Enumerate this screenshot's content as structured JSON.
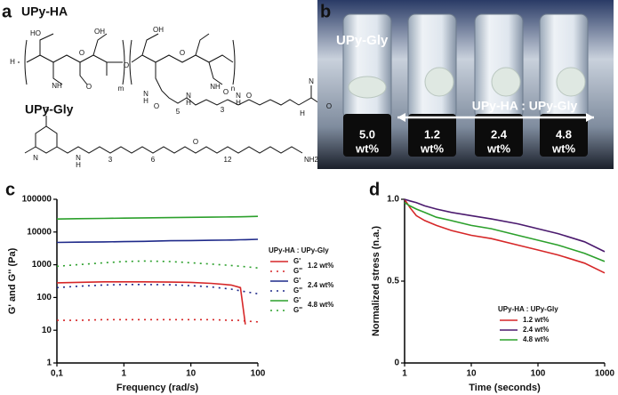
{
  "panels": {
    "a": {
      "label": "a",
      "molecules": [
        "UPy-HA",
        "UPy-Gly"
      ],
      "atoms": [
        "H",
        "O",
        "HO",
        "OH",
        "NH",
        "O",
        "m",
        "O",
        "OH",
        "O",
        "NH",
        "O",
        "n",
        "5",
        "N",
        "H",
        "O",
        "N",
        "H",
        "3",
        "N",
        "H",
        "O",
        "N",
        "O",
        "H",
        "N",
        "N",
        "H",
        "3",
        "6",
        "12",
        "NH2",
        "O",
        "O"
      ]
    },
    "b": {
      "label": "b",
      "sample_label": "UPy-Gly",
      "ratio_label": "UPy-HA : UPy-Gly",
      "vials": [
        {
          "amount": "5.0",
          "unit": "wt%"
        },
        {
          "amount": "1.2",
          "unit": "wt%"
        },
        {
          "amount": "2.4",
          "unit": "wt%"
        },
        {
          "amount": "4.8",
          "unit": "wt%"
        }
      ]
    }
  },
  "chart_data": [
    {
      "type": "line",
      "panel_label": "c",
      "x_label": "Frequency (rad/s)",
      "y_label": "G' and G'' (Pa)",
      "xscale": "log",
      "yscale": "log",
      "xlim": [
        0.1,
        100
      ],
      "xticks": [
        {
          "value": 0.1,
          "label": "0,1"
        },
        1,
        10,
        100
      ],
      "ylim": [
        1,
        100000
      ],
      "yticks": [
        1,
        10,
        100,
        1000,
        10000,
        100000
      ],
      "legend_title": "UPy-HA : UPy-Gly",
      "x": [
        0.1,
        0.2,
        0.5,
        1,
        2,
        5,
        10,
        20,
        40,
        55,
        65,
        100
      ],
      "series": [
        {
          "name": "G'",
          "group": "1.2 wt%",
          "color": "#d62728",
          "style": "solid",
          "values": [
            280,
            290,
            300,
            300,
            300,
            295,
            290,
            270,
            240,
            200,
            15,
            null
          ]
        },
        {
          "name": "G''",
          "color": "#d62728",
          "style": "dotted",
          "values": [
            20,
            20,
            21,
            21,
            21,
            21,
            21,
            21,
            20,
            20,
            19,
            18
          ]
        },
        {
          "name": "G'",
          "group": "2.4 wt%",
          "color": "#1f2a8a",
          "style": "solid",
          "values": [
            4800,
            4900,
            5000,
            5100,
            5200,
            5400,
            5500,
            5600,
            5700,
            5800,
            5850,
            6000
          ]
        },
        {
          "name": "G''",
          "color": "#1f2a8a",
          "style": "dotted",
          "values": [
            200,
            220,
            240,
            250,
            250,
            245,
            230,
            210,
            180,
            160,
            150,
            130
          ]
        },
        {
          "name": "G'",
          "group": "4.8 wt%",
          "color": "#2ca02c",
          "style": "solid",
          "values": [
            25000,
            25500,
            26000,
            26500,
            27000,
            27500,
            28000,
            28500,
            29000,
            29200,
            29400,
            30000
          ]
        },
        {
          "name": "G''",
          "color": "#2ca02c",
          "style": "dotted",
          "values": [
            900,
            1000,
            1150,
            1250,
            1300,
            1250,
            1150,
            1050,
            950,
            900,
            870,
            800
          ]
        }
      ]
    },
    {
      "type": "line",
      "panel_label": "d",
      "x_label": "Time (seconds)",
      "y_label": "Normalized stress (n.a.)",
      "xscale": "log",
      "yscale": "linear",
      "xlim": [
        1,
        1000
      ],
      "xticks": [
        1,
        10,
        100,
        1000
      ],
      "ylim": [
        0,
        1
      ],
      "yticks": [
        0,
        0.5,
        {
          "value": 1,
          "label": "1.0"
        }
      ],
      "legend_title": "UPy-HA : UPy-Gly",
      "x": [
        1,
        1.2,
        1.5,
        2,
        3,
        5,
        10,
        20,
        50,
        100,
        200,
        500,
        1000
      ],
      "series": [
        {
          "name": "1.2 wt%",
          "color": "#d62728",
          "style": "solid",
          "values": [
            1.0,
            0.95,
            0.9,
            0.87,
            0.84,
            0.81,
            0.78,
            0.76,
            0.72,
            0.69,
            0.66,
            0.61,
            0.55
          ]
        },
        {
          "name": "2.4 wt%",
          "color": "#4b1a6e",
          "style": "solid",
          "values": [
            1.0,
            0.99,
            0.98,
            0.96,
            0.94,
            0.92,
            0.9,
            0.88,
            0.85,
            0.82,
            0.79,
            0.74,
            0.68
          ]
        },
        {
          "name": "4.8 wt%",
          "color": "#2ca02c",
          "style": "solid",
          "values": [
            0.98,
            0.96,
            0.94,
            0.92,
            0.89,
            0.87,
            0.84,
            0.82,
            0.78,
            0.75,
            0.72,
            0.67,
            0.62
          ]
        }
      ]
    }
  ]
}
